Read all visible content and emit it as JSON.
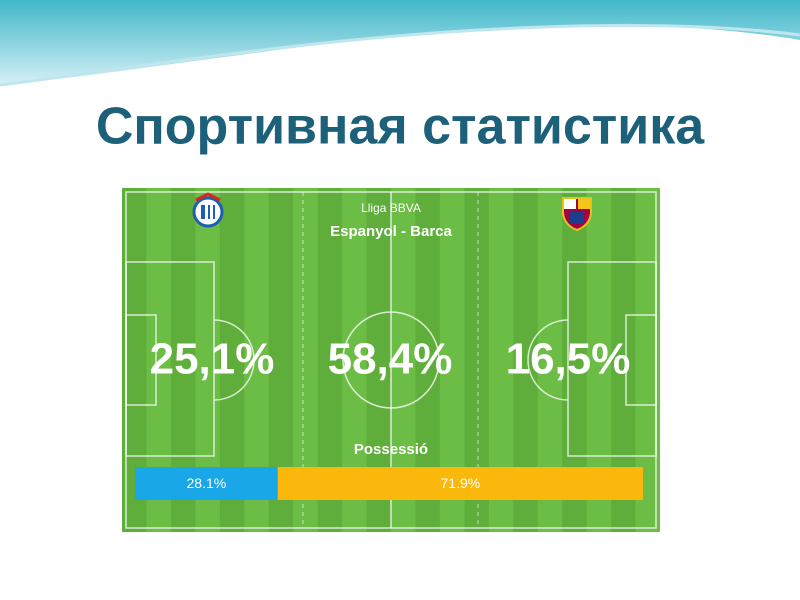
{
  "title": "Спортивная статистика",
  "pitch": {
    "league": "Lliga BBVA",
    "match": "Espanyol - Barca",
    "stats": [
      "25,1%",
      "58,4%",
      "16,5%"
    ],
    "possession": {
      "title": "Possessió",
      "values": [
        28.1,
        71.9
      ],
      "value_labels": [
        "28.1%",
        "71.9%"
      ],
      "colors": [
        "#1aa7e8",
        "#fbb80c"
      ]
    }
  }
}
